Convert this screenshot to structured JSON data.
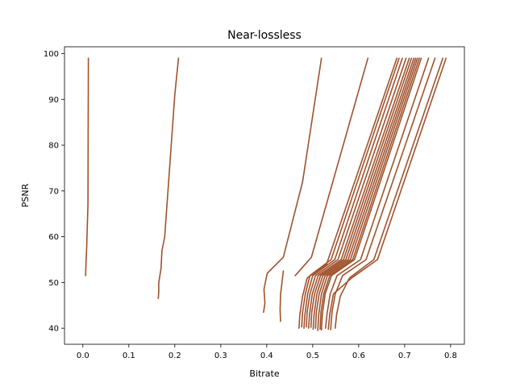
{
  "chart_data": {
    "type": "line",
    "title": "Near-lossless",
    "xlabel": "Bitrate",
    "ylabel": "PSNR",
    "xlim": [
      -0.04,
      0.83
    ],
    "ylim": [
      36.5,
      101.5
    ],
    "xticks": [
      0.0,
      0.1,
      0.2,
      0.3,
      0.4,
      0.5,
      0.6,
      0.7,
      0.8
    ],
    "xtick_labels": [
      "0.0",
      "0.1",
      "0.2",
      "0.3",
      "0.4",
      "0.5",
      "0.6",
      "0.7",
      "0.8"
    ],
    "yticks": [
      40,
      50,
      60,
      70,
      80,
      90,
      100
    ],
    "ytick_labels": [
      "40",
      "50",
      "60",
      "70",
      "80",
      "90",
      "100"
    ],
    "grid": false,
    "line_color": "#a0522d",
    "series": [
      {
        "x": [
          0.012,
          0.011,
          0.009,
          0.008,
          0.007,
          0.006
        ],
        "y": [
          99,
          67,
          60,
          57,
          55,
          51.5
        ]
      },
      {
        "x": [
          0.208,
          0.2,
          0.178,
          0.172,
          0.17,
          0.165,
          0.165,
          0.164
        ],
        "y": [
          99,
          91,
          60,
          57,
          53,
          50,
          48,
          46.5
        ]
      },
      {
        "x": [
          0.519,
          0.478,
          0.436,
          0.401,
          0.394,
          0.396,
          0.393
        ],
        "y": [
          99,
          72,
          55.5,
          52,
          48.5,
          45.5,
          43.5
        ]
      },
      {
        "x": [
          0.436,
          0.432,
          0.43,
          0.429,
          0.43
        ],
        "y": [
          52.5,
          49,
          47.5,
          44,
          41.5
        ]
      },
      {
        "x": [
          0.62,
          0.497,
          0.462
        ],
        "y": [
          99,
          55.5,
          51.5
        ]
      },
      {
        "x": [
          0.683,
          0.53,
          0.488,
          0.478,
          0.472,
          0.47
        ],
        "y": [
          99,
          54,
          51,
          47,
          43,
          40
        ]
      },
      {
        "x": [
          0.688,
          0.54,
          0.494,
          0.484,
          0.478,
          0.476
        ],
        "y": [
          99,
          55,
          51.5,
          47.5,
          43.5,
          40.3
        ]
      },
      {
        "x": [
          0.695,
          0.548,
          0.5,
          0.489,
          0.483,
          0.481
        ],
        "y": [
          99,
          55,
          51.5,
          47.5,
          43,
          40
        ]
      },
      {
        "x": [
          0.703,
          0.555,
          0.506,
          0.494,
          0.488,
          0.486
        ],
        "y": [
          99,
          55,
          51.5,
          47.5,
          43.5,
          40.3
        ]
      },
      {
        "x": [
          0.71,
          0.562,
          0.512,
          0.499,
          0.493,
          0.491
        ],
        "y": [
          99,
          55,
          51.5,
          47.5,
          43,
          40
        ]
      },
      {
        "x": [
          0.715,
          0.567,
          0.517,
          0.504,
          0.498,
          0.496
        ],
        "y": [
          99,
          55,
          51.5,
          47.5,
          43.5,
          40.2
        ]
      },
      {
        "x": [
          0.72,
          0.572,
          0.522,
          0.509,
          0.503,
          0.501
        ],
        "y": [
          99,
          55,
          51.5,
          47.5,
          43,
          39.8
        ]
      },
      {
        "x": [
          0.724,
          0.577,
          0.527,
          0.514,
          0.508,
          0.506
        ],
        "y": [
          99,
          55,
          51.5,
          47.5,
          43.5,
          40
        ]
      },
      {
        "x": [
          0.728,
          0.582,
          0.532,
          0.519,
          0.513,
          0.511
        ],
        "y": [
          99,
          55,
          51.5,
          47.5,
          43,
          39.5
        ]
      },
      {
        "x": [
          0.732,
          0.587,
          0.537,
          0.524,
          0.518,
          0.516
        ],
        "y": [
          99,
          55,
          51.5,
          47.5,
          43.5,
          39.8
        ]
      },
      {
        "x": [
          0.736,
          0.591,
          0.541,
          0.527,
          0.521,
          0.519
        ],
        "y": [
          99,
          55,
          51.5,
          47.5,
          43,
          39.6
        ]
      },
      {
        "x": [
          0.752,
          0.604,
          0.553,
          0.538,
          0.531,
          0.528
        ],
        "y": [
          99,
          55,
          51.5,
          47.5,
          43,
          40
        ]
      },
      {
        "x": [
          0.766,
          0.616,
          0.565,
          0.549,
          0.542,
          0.539
        ],
        "y": [
          99,
          55,
          51.5,
          47.5,
          43.5,
          39.7
        ]
      },
      {
        "x": [
          0.783,
          0.633,
          0.58,
          0.56,
          0.552,
          0.549
        ],
        "y": [
          99,
          55,
          51,
          47,
          43,
          40
        ]
      },
      {
        "x": [
          0.79,
          0.641,
          0.585,
          0.545,
          0.537,
          0.534
        ],
        "y": [
          99,
          55,
          51,
          47.5,
          43,
          39.8
        ]
      }
    ]
  }
}
